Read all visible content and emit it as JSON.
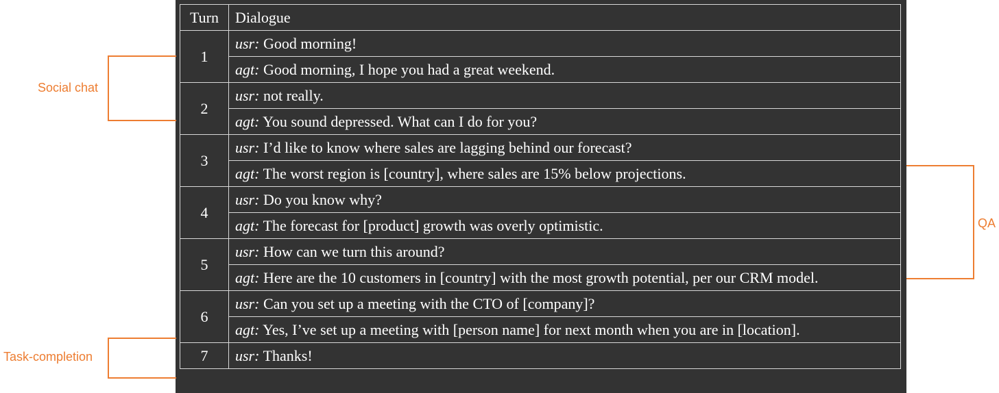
{
  "headers": {
    "turn": "Turn",
    "dialogue": "Dialogue"
  },
  "turns": [
    {
      "num": "1",
      "lines": [
        {
          "speaker": "usr:",
          "text": "Good morning!"
        },
        {
          "speaker": "agt:",
          "text": "Good morning, I hope you had a great weekend."
        }
      ]
    },
    {
      "num": "2",
      "lines": [
        {
          "speaker": "usr:",
          "text": "not really."
        },
        {
          "speaker": "agt:",
          "text": "You sound depressed. What can I do for you?"
        }
      ]
    },
    {
      "num": "3",
      "lines": [
        {
          "speaker": "usr:",
          "text": "I’d like to know where sales are lagging behind our forecast?"
        },
        {
          "speaker": "agt:",
          "text": "The worst region is [country], where sales are 15% below projections."
        }
      ]
    },
    {
      "num": "4",
      "lines": [
        {
          "speaker": "usr:",
          "text": "Do you know why?"
        },
        {
          "speaker": "agt:",
          "text": "The forecast for [product] growth was overly optimistic."
        }
      ]
    },
    {
      "num": "5",
      "lines": [
        {
          "speaker": "usr:",
          "text": "How can we turn this around?"
        },
        {
          "speaker": "agt:",
          "text": "Here are the 10 customers in [country] with the most growth potential, per our CRM model."
        }
      ]
    },
    {
      "num": "6",
      "lines": [
        {
          "speaker": "usr:",
          "text": "Can you set up a meeting with the CTO of [company]?"
        },
        {
          "speaker": "agt:",
          "text": "Yes, I’ve set up a meeting with [person name] for next month when you are in [location]."
        }
      ]
    },
    {
      "num": "7",
      "lines": [
        {
          "speaker": "usr:",
          "text": "Thanks!"
        }
      ]
    }
  ],
  "annotations": {
    "social_chat": "Social chat",
    "qa": "QA",
    "task_completion": "Task-completion"
  },
  "colors": {
    "panel_background": "#333333",
    "grid_lines": "#d9d9d9",
    "annotation": "#ed7d31",
    "text": "#ffffff"
  }
}
